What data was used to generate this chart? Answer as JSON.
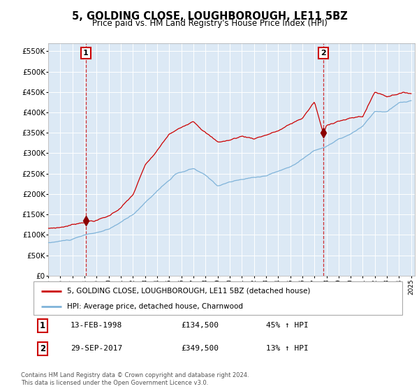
{
  "title": "5, GOLDING CLOSE, LOUGHBOROUGH, LE11 5BZ",
  "subtitle": "Price paid vs. HM Land Registry's House Price Index (HPI)",
  "background_color": "#dce9f5",
  "plot_bg_color": "#dce9f5",
  "hpi_line_color": "#7fb3d9",
  "price_line_color": "#cc0000",
  "marker_color": "#8b0000",
  "ylim": [
    0,
    570000
  ],
  "yticks": [
    0,
    50000,
    100000,
    150000,
    200000,
    250000,
    300000,
    350000,
    400000,
    450000,
    500000,
    550000
  ],
  "sale1": {
    "date_num": 1998.12,
    "price": 134500,
    "label": "1"
  },
  "sale2": {
    "date_num": 2017.75,
    "price": 349500,
    "label": "2"
  },
  "legend_label_red": "5, GOLDING CLOSE, LOUGHBOROUGH, LE11 5BZ (detached house)",
  "legend_label_blue": "HPI: Average price, detached house, Charnwood",
  "footer": "Contains HM Land Registry data © Crown copyright and database right 2024.\nThis data is licensed under the Open Government Licence v3.0.",
  "table_rows": [
    {
      "num": "1",
      "date": "13-FEB-1998",
      "price": "£134,500",
      "pct": "45% ↑ HPI"
    },
    {
      "num": "2",
      "date": "29-SEP-2017",
      "price": "£349,500",
      "pct": "13% ↑ HPI"
    }
  ]
}
